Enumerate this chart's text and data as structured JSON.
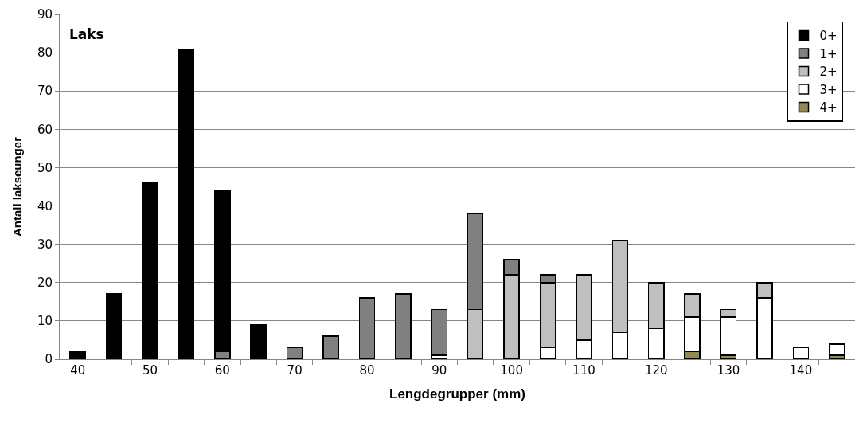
{
  "chart_data": {
    "type": "bar",
    "stacked": true,
    "xlabel": "Lengdegrupper (mm)",
    "ylabel": "Antall lakseunger",
    "annotations": [
      "Laks"
    ],
    "categories": [
      "40",
      null,
      "50",
      null,
      "60",
      null,
      "70",
      null,
      "80",
      null,
      "90",
      null,
      "100",
      null,
      "110",
      null,
      "120",
      null,
      "130",
      null,
      "140",
      null
    ],
    "series": [
      {
        "name": "4+",
        "color": "#938953",
        "values": [
          null,
          null,
          null,
          null,
          null,
          null,
          null,
          null,
          null,
          null,
          null,
          null,
          null,
          null,
          null,
          null,
          null,
          2,
          1,
          null,
          null,
          1
        ]
      },
      {
        "name": "3+",
        "color": "#ffffff",
        "values": [
          null,
          null,
          null,
          null,
          null,
          null,
          null,
          null,
          null,
          null,
          1,
          null,
          null,
          3,
          5,
          7,
          8,
          9,
          10,
          16,
          3,
          3
        ]
      },
      {
        "name": "2+",
        "color": "#bfbfbf",
        "values": [
          null,
          null,
          null,
          null,
          null,
          null,
          null,
          null,
          null,
          null,
          null,
          13,
          22,
          17,
          17,
          24,
          12,
          6,
          2,
          4,
          null,
          null
        ]
      },
      {
        "name": "1+",
        "color": "#808080",
        "values": [
          null,
          null,
          null,
          null,
          2,
          null,
          3,
          6,
          16,
          17,
          12,
          25,
          4,
          2,
          null,
          null,
          null,
          null,
          null,
          null,
          null,
          null
        ]
      },
      {
        "name": "0+",
        "color": "#000000",
        "values": [
          2,
          17,
          46,
          81,
          42,
          9,
          null,
          null,
          null,
          null,
          null,
          null,
          null,
          null,
          null,
          null,
          null,
          null,
          null,
          null,
          null,
          null
        ]
      }
    ],
    "ylim": [
      0,
      90
    ],
    "yticks": [
      0,
      10,
      20,
      30,
      40,
      50,
      60,
      70,
      80,
      90
    ],
    "grid": "y",
    "legend": "top right"
  }
}
